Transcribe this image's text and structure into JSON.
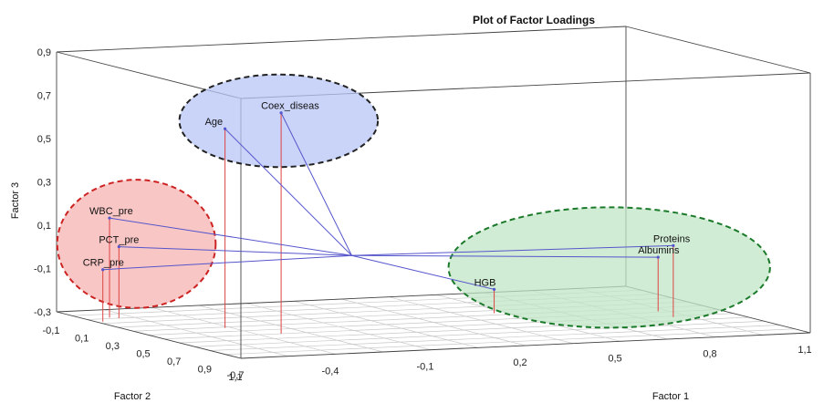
{
  "chart_data": {
    "type": "scatter",
    "title": "Plot of Factor Loadings",
    "xlabel": "Factor 1",
    "ylabel": "Factor 2",
    "zlabel": "Factor 3",
    "xlim": [
      -0.7,
      1.1
    ],
    "ylim": [
      -0.1,
      1.1
    ],
    "zlim": [
      -0.3,
      0.9
    ],
    "x_ticks": [
      "-0,7",
      "-0,4",
      "-0,1",
      "0,2",
      "0,5",
      "0,8",
      "1,1"
    ],
    "y_ticks": [
      "-0,1",
      "0,1",
      "0,3",
      "0,5",
      "0,7",
      "0,9",
      "1,1"
    ],
    "z_ticks": [
      "-0,3",
      "-0,1",
      "0,1",
      "0,3",
      "0,5",
      "0,7",
      "0,9"
    ],
    "points": [
      {
        "label": "Age",
        "x": -0.42,
        "y": 0.42,
        "z": 0.62
      },
      {
        "label": "Coex_diseas",
        "x": -0.33,
        "y": 0.6,
        "z": 0.72
      },
      {
        "label": "WBC_pre",
        "x": -0.62,
        "y": 0.08,
        "z": 0.16
      },
      {
        "label": "PCT_pre",
        "x": -0.6,
        "y": 0.1,
        "z": 0.03
      },
      {
        "label": "CRP_pre",
        "x": -0.68,
        "y": 0.16,
        "z": -0.06
      },
      {
        "label": "Proteins",
        "x": 0.9,
        "y": 0.62,
        "z": 0.03
      },
      {
        "label": "Albumins",
        "x": 0.92,
        "y": 0.48,
        "z": -0.05
      },
      {
        "label": "HGB",
        "x": 0.46,
        "y": 0.36,
        "z": -0.19
      }
    ],
    "origin": {
      "x": 0.0,
      "y": 0.38,
      "z": 0.0
    },
    "clusters": [
      {
        "members": [
          "Age",
          "Coex_diseas"
        ],
        "color": "#b8c6f5",
        "border": "#222222"
      },
      {
        "members": [
          "WBC_pre",
          "PCT_pre",
          "CRP_pre"
        ],
        "color": "#f5b3b0",
        "border": "#cc2222"
      },
      {
        "members": [
          "Proteins",
          "Albumins",
          "HGB"
        ],
        "color": "#c2e6c6",
        "border": "#1a7a2a"
      }
    ],
    "colors": {
      "vector": "#5555cc",
      "stem": "#dd4444",
      "grid": "#c8c8c8",
      "box": "#444444"
    },
    "grid": true,
    "legend": "none"
  }
}
